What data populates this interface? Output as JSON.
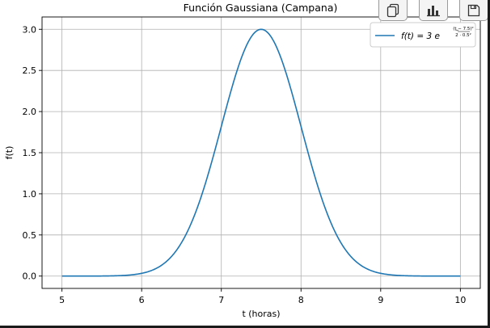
{
  "toolbar": {
    "buttons": [
      {
        "name": "copy-button",
        "icon": "copy-icon"
      },
      {
        "name": "chart-button",
        "icon": "bar-chart-icon"
      },
      {
        "name": "save-button",
        "icon": "floppy-disk-icon"
      }
    ]
  },
  "colors": {
    "series": "#1f77b4",
    "grid": "#b0b0b0",
    "axis": "#000000",
    "frame": "#1b1b1b"
  },
  "chart_data": {
    "type": "line",
    "title": "Función Gaussiana (Campana)",
    "xlabel": "t (horas)",
    "ylabel": "f(t)",
    "xlim": [
      4.75,
      10.25
    ],
    "ylim": [
      -0.15,
      3.15
    ],
    "xticks": [
      5,
      6,
      7,
      8,
      9,
      10
    ],
    "yticks": [
      0.0,
      0.5,
      1.0,
      1.5,
      2.0,
      2.5,
      3.0
    ],
    "xtick_labels": [
      "5",
      "6",
      "7",
      "8",
      "9",
      "10"
    ],
    "ytick_labels": [
      "0.0",
      "0.5",
      "1.0",
      "1.5",
      "2.0",
      "2.5",
      "3.0"
    ],
    "grid": true,
    "legend_position": "top-right",
    "series": [
      {
        "name": "f(t) = 3 e^(-(t−7.5)²/(2·0.5²))",
        "x": [
          5.0,
          5.5,
          6.0,
          6.25,
          6.5,
          6.75,
          7.0,
          7.25,
          7.5,
          7.75,
          8.0,
          8.25,
          8.5,
          8.75,
          9.0,
          9.5,
          10.0
        ],
        "y": [
          0.0,
          0.001,
          0.033,
          0.132,
          0.406,
          0.974,
          1.82,
          2.648,
          3.0,
          2.648,
          1.82,
          0.974,
          0.406,
          0.132,
          0.033,
          0.001,
          0.0
        ]
      }
    ],
    "legend_label": {
      "lhs": "f(t) = 3 e",
      "exp_num": "(t − 7.5)²",
      "exp_den": "2 · 0.5²"
    }
  }
}
